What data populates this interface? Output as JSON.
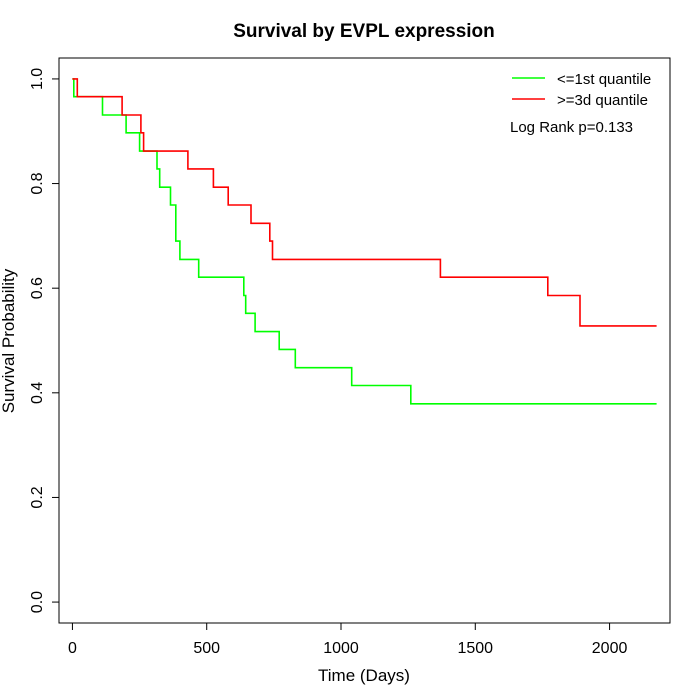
{
  "chart_data": {
    "type": "line",
    "title": "Survival by EVPL expression",
    "xlabel": "Time (Days)",
    "ylabel": "Survival Probability",
    "xlim": [
      -50,
      2225
    ],
    "ylim": [
      -0.04,
      1.04
    ],
    "x_ticks": [
      "0",
      "500",
      "1000",
      "1500",
      "2000"
    ],
    "y_ticks": [
      "0.0",
      "0.2",
      "0.4",
      "0.6",
      "0.8",
      "1.0"
    ],
    "grid": false,
    "legend_position": "top-right",
    "annotation": "Log Rank p=0.133",
    "series": [
      {
        "name": "<=1st quantile",
        "color": "#00ff00",
        "steps": [
          [
            0,
            1.0
          ],
          [
            5,
            0.966
          ],
          [
            112,
            0.931
          ],
          [
            200,
            0.897
          ],
          [
            250,
            0.862
          ],
          [
            315,
            0.828
          ],
          [
            325,
            0.793
          ],
          [
            365,
            0.759
          ],
          [
            385,
            0.69
          ],
          [
            400,
            0.655
          ],
          [
            470,
            0.621
          ],
          [
            638,
            0.586
          ],
          [
            645,
            0.552
          ],
          [
            680,
            0.517
          ],
          [
            770,
            0.483
          ],
          [
            830,
            0.448
          ],
          [
            1040,
            0.414
          ],
          [
            1260,
            0.379
          ],
          [
            2175,
            0.379
          ]
        ]
      },
      {
        "name": ">=3d quantile",
        "color": "#ff0000",
        "steps": [
          [
            0,
            1.0
          ],
          [
            18,
            0.966
          ],
          [
            185,
            0.931
          ],
          [
            255,
            0.897
          ],
          [
            265,
            0.862
          ],
          [
            430,
            0.828
          ],
          [
            525,
            0.793
          ],
          [
            580,
            0.759
          ],
          [
            665,
            0.724
          ],
          [
            735,
            0.69
          ],
          [
            745,
            0.655
          ],
          [
            1370,
            0.621
          ],
          [
            1770,
            0.586
          ],
          [
            1890,
            0.528
          ],
          [
            2175,
            0.528
          ]
        ]
      }
    ]
  }
}
